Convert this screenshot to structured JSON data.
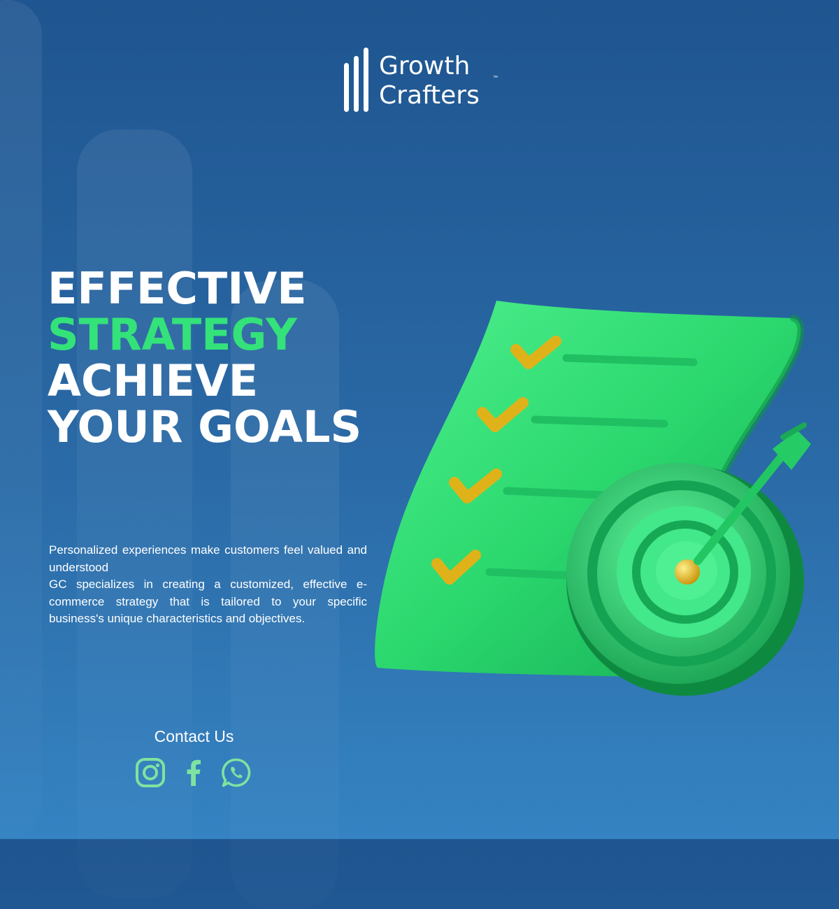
{
  "brand": {
    "name_line1": "Growth",
    "name_line2": "Crafters",
    "trademark": "™"
  },
  "headline": {
    "line1": "EFFECTIVE",
    "line2": "STRATEGY",
    "line3": "ACHIEVE",
    "line4": "YOUR GOALS"
  },
  "description": {
    "paragraph1": "Personalized experiences make customers feel valued and understood",
    "paragraph2": "GC specializes in creating a customized, effective e-commerce strategy that is tailored to your specific business's unique characteristics and objectives."
  },
  "contact": {
    "label": "Contact Us",
    "icons": [
      "instagram-icon",
      "facebook-icon",
      "whatsapp-icon"
    ]
  },
  "illustration": {
    "subject": "checklist-with-target",
    "checklist_items": 4
  },
  "colors": {
    "background": "#2a6aa6",
    "accent_green": "#34e27a",
    "icon_green": "#7ee3a0",
    "check_gold": "#e0b21a"
  }
}
